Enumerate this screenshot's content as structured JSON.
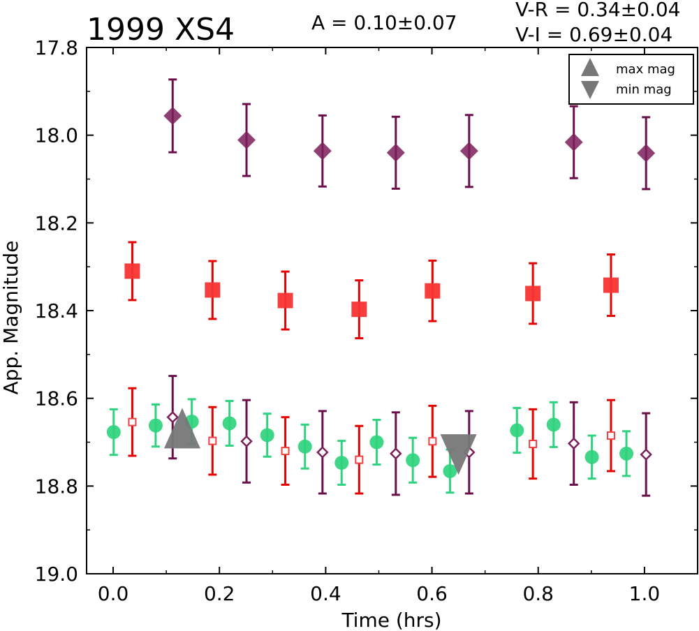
{
  "chart_data": {
    "type": "scatter",
    "title": "1999 XS4",
    "annotations": {
      "amplitude": "A  = 0.10±0.07",
      "v_r": "V-R = 0.34±0.04",
      "v_i": "V-I  = 0.69±0.04"
    },
    "xlabel": "Time (hrs)",
    "ylabel": "App. Magnitude",
    "xlim": [
      -0.05,
      1.1
    ],
    "ylim": [
      19.0,
      17.8
    ],
    "y_inverted": true,
    "grid": false,
    "x_ticks": [
      "0.0",
      "0.2",
      "0.4",
      "0.6",
      "0.8",
      "1.0"
    ],
    "y_ticks": [
      "17.8",
      "18.0",
      "18.2",
      "18.4",
      "18.6",
      "18.8",
      "19.0"
    ],
    "legend": {
      "placement": "top-right",
      "entries": [
        {
          "label": "max mag",
          "marker": "triangle-up"
        },
        {
          "label": "min mag",
          "marker": "triangle-down"
        }
      ]
    },
    "series": [
      {
        "marker": "diamond-filled",
        "color": "#7b1f5a",
        "errcolor": "#6b0f4a",
        "points": [
          {
            "x": 0.112,
            "y": 17.956,
            "err": 0.083
          },
          {
            "x": 0.251,
            "y": 18.011,
            "err": 0.082
          },
          {
            "x": 0.394,
            "y": 18.036,
            "err": 0.081
          },
          {
            "x": 0.532,
            "y": 18.04,
            "err": 0.082
          },
          {
            "x": 0.67,
            "y": 18.036,
            "err": 0.082
          },
          {
            "x": 0.867,
            "y": 18.016,
            "err": 0.082
          },
          {
            "x": 1.003,
            "y": 18.041,
            "err": 0.082
          }
        ]
      },
      {
        "marker": "square-filled",
        "color": "#f83333",
        "errcolor": "#e60000",
        "points": [
          {
            "x": 0.036,
            "y": 18.31,
            "err": 0.066
          },
          {
            "x": 0.187,
            "y": 18.353,
            "err": 0.066
          },
          {
            "x": 0.324,
            "y": 18.377,
            "err": 0.066
          },
          {
            "x": 0.463,
            "y": 18.397,
            "err": 0.066
          },
          {
            "x": 0.601,
            "y": 18.355,
            "err": 0.069
          },
          {
            "x": 0.79,
            "y": 18.361,
            "err": 0.069
          },
          {
            "x": 0.937,
            "y": 18.342,
            "err": 0.07
          }
        ]
      },
      {
        "marker": "circle-filled",
        "color": "#2fd27e",
        "errcolor": "#2fd27e",
        "points": [
          {
            "x": 0.001,
            "y": 18.677,
            "err": 0.052
          },
          {
            "x": 0.08,
            "y": 18.662,
            "err": 0.048
          },
          {
            "x": 0.148,
            "y": 18.653,
            "err": 0.051
          },
          {
            "x": 0.219,
            "y": 18.657,
            "err": 0.051
          },
          {
            "x": 0.29,
            "y": 18.684,
            "err": 0.049
          },
          {
            "x": 0.361,
            "y": 18.71,
            "err": 0.05
          },
          {
            "x": 0.43,
            "y": 18.747,
            "err": 0.05
          },
          {
            "x": 0.496,
            "y": 18.7,
            "err": 0.051
          },
          {
            "x": 0.564,
            "y": 18.741,
            "err": 0.051
          },
          {
            "x": 0.634,
            "y": 18.766,
            "err": 0.049
          },
          {
            "x": 0.76,
            "y": 18.673,
            "err": 0.051
          },
          {
            "x": 0.829,
            "y": 18.66,
            "err": 0.051
          },
          {
            "x": 0.901,
            "y": 18.734,
            "err": 0.049
          },
          {
            "x": 0.966,
            "y": 18.726,
            "err": 0.051
          }
        ]
      },
      {
        "marker": "square-open",
        "color": "#f24040",
        "errcolor": "#e60000",
        "points": [
          {
            "x": 0.036,
            "y": 18.654,
            "err": 0.077
          },
          {
            "x": 0.187,
            "y": 18.697,
            "err": 0.077
          },
          {
            "x": 0.324,
            "y": 18.72,
            "err": 0.077
          },
          {
            "x": 0.463,
            "y": 18.74,
            "err": 0.077
          },
          {
            "x": 0.601,
            "y": 18.698,
            "err": 0.081
          },
          {
            "x": 0.79,
            "y": 18.704,
            "err": 0.079
          },
          {
            "x": 0.937,
            "y": 18.685,
            "err": 0.081
          }
        ]
      },
      {
        "marker": "diamond-open",
        "color": "#7b1f5a",
        "errcolor": "#6b0f4a",
        "points": [
          {
            "x": 0.112,
            "y": 18.643,
            "err": 0.094
          },
          {
            "x": 0.251,
            "y": 18.698,
            "err": 0.094
          },
          {
            "x": 0.394,
            "y": 18.723,
            "err": 0.094
          },
          {
            "x": 0.532,
            "y": 18.726,
            "err": 0.094
          },
          {
            "x": 0.67,
            "y": 18.723,
            "err": 0.094
          },
          {
            "x": 0.867,
            "y": 18.703,
            "err": 0.094
          },
          {
            "x": 1.003,
            "y": 18.728,
            "err": 0.094
          }
        ]
      }
    ],
    "extrema": [
      {
        "label": "max mag",
        "x": 0.13,
        "y": 18.668,
        "marker": "triangle-up",
        "color": "#777777"
      },
      {
        "label": "min mag",
        "x": 0.65,
        "y": 18.728,
        "marker": "triangle-down",
        "color": "#777777"
      }
    ]
  }
}
